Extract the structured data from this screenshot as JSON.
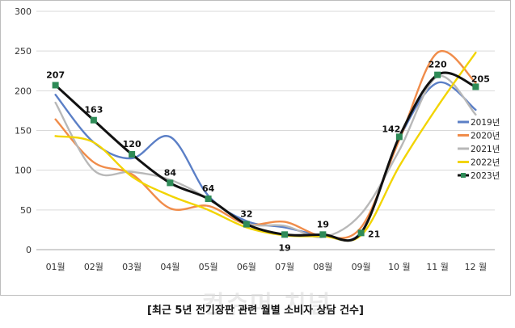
{
  "chart_data": {
    "type": "line",
    "title": "",
    "xlabel": "",
    "ylabel": "",
    "ylim": [
      0,
      300
    ],
    "yticks": [
      0,
      50,
      100,
      150,
      200,
      250,
      300
    ],
    "grid": "horizontal",
    "legend_position": "right",
    "categories": [
      "01월",
      "02월",
      "03월",
      "04월",
      "05월",
      "06월",
      "07월",
      "08월",
      "09월",
      "10 월",
      "11 월",
      "12 월"
    ],
    "series": [
      {
        "name": "2019년",
        "color": "#5b7fc6",
        "values": [
          195,
          135,
          115,
          142,
          68,
          36,
          28,
          18,
          22,
          140,
          210,
          176
        ]
      },
      {
        "name": "2020년",
        "color": "#f08c4a",
        "values": [
          164,
          110,
          95,
          52,
          55,
          32,
          35,
          17,
          28,
          138,
          248,
          210
        ]
      },
      {
        "name": "2021년",
        "color": "#b8b8b8",
        "values": [
          185,
          100,
          98,
          88,
          64,
          33,
          30,
          16,
          45,
          125,
          218,
          170
        ]
      },
      {
        "name": "2022년",
        "color": "#f2d400",
        "values": [
          143,
          135,
          92,
          68,
          50,
          28,
          18,
          17,
          18,
          105,
          180,
          248
        ]
      },
      {
        "name": "2023년",
        "color": "#111111",
        "values": [
          207,
          163,
          120,
          84,
          64,
          32,
          19,
          19,
          21,
          142,
          220,
          205
        ],
        "marker": "square",
        "marker_color": "#2e8b57",
        "data_labels": true
      }
    ]
  },
  "caption": "[최근 5년 전기장판 관련 월별 소비자 상담 건수]",
  "watermark": "컨슈머 치널"
}
